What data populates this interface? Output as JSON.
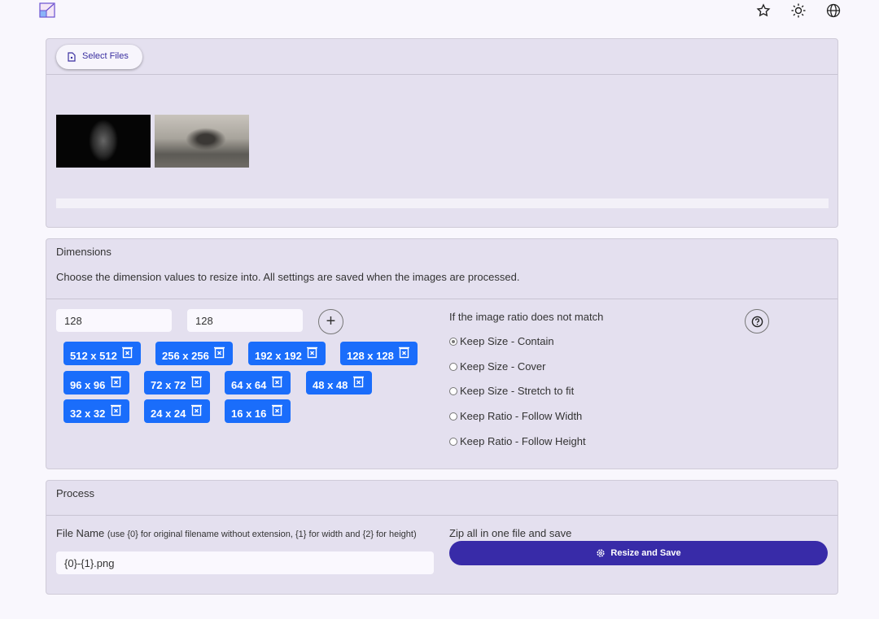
{
  "header": {
    "logo": "image-resize-logo",
    "icons": [
      "star-icon",
      "sun-icon",
      "globe-icon"
    ]
  },
  "files": {
    "select_label": "Select Files",
    "thumbnails": [
      "anonymous-mask-image",
      "wolves-image"
    ],
    "progress": 0
  },
  "dimensions": {
    "title": "Dimensions",
    "description": "Choose the dimension values to resize into. All settings are saved when the images are processed.",
    "width_value": "128",
    "height_value": "128",
    "sizes": [
      "512 x 512",
      "256 x 256",
      "192 x 192",
      "128 x 128",
      "96 x 96",
      "72 x 72",
      "64 x 64",
      "48 x 48",
      "32 x 32",
      "24 x 24",
      "16 x 16"
    ],
    "ratio_title": "If the image ratio does not match",
    "options": [
      "Keep Size - Contain",
      "Keep Size - Cover",
      "Keep Size - Stretch to fit",
      "Keep Ratio - Follow Width",
      "Keep Ratio - Follow Height"
    ],
    "selected": "Keep Size - Contain"
  },
  "process": {
    "title": "Process",
    "file_name_label": "File Name",
    "file_name_hint": "(use {0} for original filename without extension, {1} for width and {2} for height)",
    "file_name_value": "{0}-{1}.png",
    "zip_label": "Zip all in one file and save",
    "resize_label": "Resize and Save"
  },
  "colors": {
    "chip": "#1a6dfb",
    "primary": "#382ba8",
    "card": "#e4e0ef"
  }
}
